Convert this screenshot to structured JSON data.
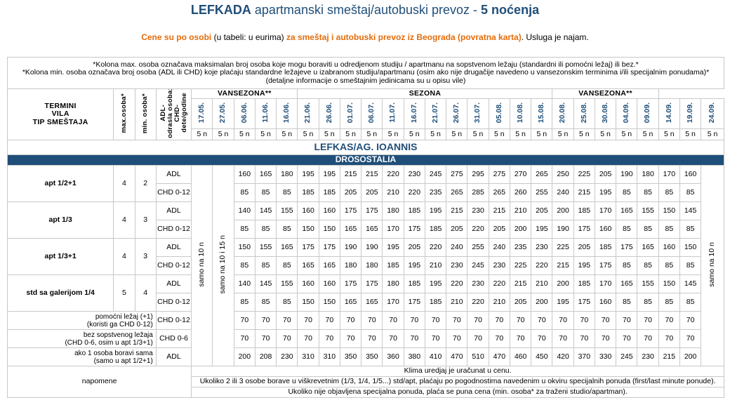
{
  "header": {
    "title_bold": "LEFKADA",
    "title_regular": " apartmanski smeštaj/autobuski prevoz - ",
    "title_nights": "5 noćenja",
    "subtitle_a": "Cene su po osobi",
    "subtitle_b": " (u tabeli: u eurima) ",
    "subtitle_c": "za smeštaj i autobuski prevoz iz Beograda (povratna karta)",
    "subtitle_d": ". Usluga je najam."
  },
  "notes": {
    "line1": "*Kolona max. osoba označava maksimalan broj osoba koje mogu boraviti u odredjenom studiju / apartmanu na sopstvenom ležaju (standardni ili pomoćni ležaj) ili bez.*",
    "line2": "*Kolona min. osoba označava broj osoba (ADL ili CHD) koje plaćaju standardne ležajeve u izabranom studiju/apartmanu (osim ako nije drugačije navedeno u vansezonskim terminima i/ili specijalnim ponudama)*",
    "line3": "(detaljne informacije o smeštajnim jedinicama su u opisu vile)"
  },
  "columns": {
    "termini": "TERMINI",
    "vila": "VILA",
    "tip": "TIP SMEŠTAJA",
    "max": "max.osoba*",
    "min": "min. osoba*",
    "adl_line1": "ADL-",
    "adl_line2": "odrasla osoba;",
    "adl_line3": "CHD-",
    "adl_line4": "dete/godine"
  },
  "seasons": [
    {
      "label": "VANSEZONA**",
      "span": 5
    },
    {
      "label": "SEZONA",
      "span": 12
    },
    {
      "label": "VANSEZONA**",
      "span": 5
    }
  ],
  "dates": [
    "17.05.",
    "27.05.",
    "06.06.",
    "11.06.",
    "16.06.",
    "21.06.",
    "26.06.",
    "01.07.",
    "06.07.",
    "11.07.",
    "16.07.",
    "21.07.",
    "26.07.",
    "31.07.",
    "05.08.",
    "10.08.",
    "15.08.",
    "20.08.",
    "25.08.",
    "30.08.",
    "04.09.",
    "09.09.",
    "14.09.",
    "19.09.",
    "24.09."
  ],
  "nights": [
    "5 n",
    "5 n",
    "5 n",
    "5 n",
    "5 n",
    "5 n",
    "5 n",
    "5 n",
    "5 n",
    "5 n",
    "5 n",
    "5 n",
    "5 n",
    "5 n",
    "5 n",
    "5 n",
    "5 n",
    "5 n",
    "5 n",
    "5 n",
    "5 n",
    "5 n",
    "5 n",
    "5 n",
    "5 n"
  ],
  "region": "LEFKAS/AG. IOANNIS",
  "villa": "DROSOSTALIA",
  "side_notes": {
    "col1": "samo na 10 n",
    "col2": "samo na 10 i 15 n",
    "col_last": "samo na 10 n"
  },
  "units": [
    {
      "name": "apt 1/2+1",
      "max": "4",
      "min": "2",
      "rows": [
        {
          "type": "ADL",
          "prices": [
            "160",
            "165",
            "180",
            "195",
            "195",
            "215",
            "215",
            "220",
            "230",
            "245",
            "275",
            "295",
            "275",
            "270",
            "265",
            "250",
            "225",
            "205",
            "190",
            "180",
            "170",
            "160"
          ]
        },
        {
          "type": "CHD 0-12",
          "prices": [
            "85",
            "85",
            "85",
            "185",
            "185",
            "205",
            "205",
            "210",
            "220",
            "235",
            "265",
            "285",
            "265",
            "260",
            "255",
            "240",
            "215",
            "195",
            "85",
            "85",
            "85",
            "85"
          ]
        }
      ]
    },
    {
      "name": "apt 1/3",
      "max": "4",
      "min": "3",
      "rows": [
        {
          "type": "ADL",
          "prices": [
            "140",
            "145",
            "155",
            "160",
            "160",
            "175",
            "175",
            "180",
            "185",
            "195",
            "215",
            "230",
            "215",
            "210",
            "205",
            "200",
            "185",
            "170",
            "165",
            "155",
            "150",
            "145"
          ]
        },
        {
          "type": "CHD 0-12",
          "prices": [
            "85",
            "85",
            "85",
            "150",
            "150",
            "165",
            "165",
            "170",
            "175",
            "185",
            "205",
            "220",
            "205",
            "200",
            "195",
            "190",
            "175",
            "160",
            "85",
            "85",
            "85",
            "85"
          ]
        }
      ]
    },
    {
      "name": "apt 1/3+1",
      "max": "4",
      "min": "3",
      "rows": [
        {
          "type": "ADL",
          "prices": [
            "150",
            "155",
            "165",
            "175",
            "175",
            "190",
            "190",
            "195",
            "205",
            "220",
            "240",
            "255",
            "240",
            "235",
            "230",
            "225",
            "205",
            "185",
            "175",
            "165",
            "160",
            "150"
          ]
        },
        {
          "type": "CHD 0-12",
          "prices": [
            "85",
            "85",
            "85",
            "165",
            "165",
            "180",
            "180",
            "185",
            "195",
            "210",
            "230",
            "245",
            "230",
            "225",
            "220",
            "215",
            "195",
            "175",
            "85",
            "85",
            "85",
            "85"
          ]
        }
      ]
    },
    {
      "name": "std sa galerijom 1/4",
      "max": "5",
      "min": "4",
      "rows": [
        {
          "type": "ADL",
          "prices": [
            "140",
            "145",
            "155",
            "160",
            "160",
            "175",
            "175",
            "180",
            "185",
            "195",
            "220",
            "230",
            "220",
            "215",
            "210",
            "200",
            "185",
            "170",
            "165",
            "155",
            "150",
            "145"
          ]
        },
        {
          "type": "CHD 0-12",
          "prices": [
            "85",
            "85",
            "85",
            "150",
            "150",
            "165",
            "165",
            "170",
            "175",
            "185",
            "210",
            "220",
            "210",
            "205",
            "200",
            "195",
            "175",
            "160",
            "85",
            "85",
            "85",
            "85"
          ]
        }
      ]
    }
  ],
  "extras": [
    {
      "label1": "pomoćni ležaj (+1)",
      "label2": "(koristi ga CHD 0-12)",
      "type": "CHD 0-12",
      "prices": [
        "70",
        "70",
        "70",
        "70",
        "70",
        "70",
        "70",
        "70",
        "70",
        "70",
        "70",
        "70",
        "70",
        "70",
        "70",
        "70",
        "70",
        "70",
        "70",
        "70",
        "70",
        "70"
      ]
    },
    {
      "label1": "bez sopstvenog ležaja",
      "label2": "(CHD 0-6, osim u apt 1/3+1)",
      "type": "CHD 0-6",
      "prices": [
        "70",
        "70",
        "70",
        "70",
        "70",
        "70",
        "70",
        "70",
        "70",
        "70",
        "70",
        "70",
        "70",
        "70",
        "70",
        "70",
        "70",
        "70",
        "70",
        "70",
        "70",
        "70"
      ]
    },
    {
      "label1": "ako 1 osoba boravi sama",
      "label2": "(samo u apt 1/2+1)",
      "type": "ADL",
      "prices": [
        "200",
        "208",
        "230",
        "310",
        "310",
        "350",
        "350",
        "360",
        "380",
        "410",
        "470",
        "510",
        "470",
        "460",
        "450",
        "420",
        "370",
        "330",
        "245",
        "230",
        "215",
        "200"
      ]
    }
  ],
  "footer": {
    "label": "napomene",
    "line1": "Klima uredjaj je uračunat u cenu.",
    "line2": "Ukoliko 2 ili 3 osobe borave u viškrevetnim (1/3, 1/4, 1/5...) std/apt, plaćaju po pogodnostima navedenim u okviru specijalnih ponuda (first/last minute ponude).",
    "line3": "Ukoliko nije objavljena specijalna ponuda, plaća se puna cena (min. osoba* za traženi studio/apartman)."
  }
}
